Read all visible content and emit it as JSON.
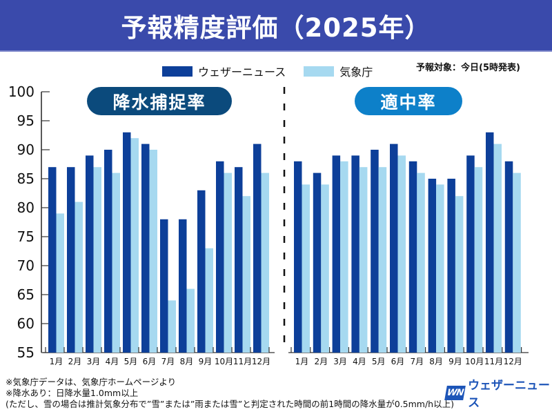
{
  "header": {
    "title": "予報精度評価（2025年）"
  },
  "legend": {
    "items": [
      {
        "label": "ウェザーニュース",
        "color": "#0d3f99"
      },
      {
        "label": "気象庁",
        "color": "#a6d9f0"
      }
    ]
  },
  "forecast_target": "予報対象：今日(5時発表)",
  "panels": {
    "left_title": "降水捕捉率",
    "right_title": "適中率"
  },
  "notes": [
    "※気象庁データは、気象庁ホームページより",
    "※降水あり：日降水量1.0mm以上",
    "(ただし、雪の場合は推計気象分布で”雪”または”雨または雪”と判定された時間の前1時間の降水量が0.5mm/h以上)"
  ],
  "logo": {
    "mark": "WN",
    "text": "ウェザーニュース"
  },
  "chart_data": [
    {
      "type": "bar",
      "title": "降水捕捉率",
      "categories": [
        "1月",
        "2月",
        "3月",
        "4月",
        "5月",
        "6月",
        "7月",
        "8月",
        "9月",
        "10月",
        "11月",
        "12月"
      ],
      "series": [
        {
          "name": "ウェザーニュース",
          "color": "#0d3f99",
          "values": [
            87,
            87,
            89,
            90,
            93,
            91,
            78,
            78,
            83,
            88,
            87,
            91
          ]
        },
        {
          "name": "気象庁",
          "color": "#a6d9f0",
          "values": [
            79,
            81,
            87,
            86,
            92,
            90,
            64,
            66,
            73,
            86,
            82,
            86
          ]
        }
      ],
      "ylim": [
        55,
        100
      ],
      "yticks": [
        55,
        60,
        65,
        70,
        75,
        80,
        85,
        90,
        95,
        100
      ],
      "xlabel": "",
      "ylabel": "",
      "legend": "top"
    },
    {
      "type": "bar",
      "title": "適中率",
      "categories": [
        "1月",
        "2月",
        "3月",
        "4月",
        "5月",
        "6月",
        "7月",
        "8月",
        "9月",
        "10月",
        "11月",
        "12月"
      ],
      "series": [
        {
          "name": "ウェザーニュース",
          "color": "#0d3f99",
          "values": [
            88,
            86,
            89,
            89,
            90,
            91,
            88,
            85,
            85,
            89,
            93,
            88
          ]
        },
        {
          "name": "気象庁",
          "color": "#a6d9f0",
          "values": [
            84,
            84,
            88,
            87,
            87,
            89,
            86,
            84,
            82,
            87,
            91,
            86
          ]
        }
      ],
      "ylim": [
        55,
        100
      ],
      "xlabel": "",
      "ylabel": "",
      "legend": "top"
    }
  ]
}
